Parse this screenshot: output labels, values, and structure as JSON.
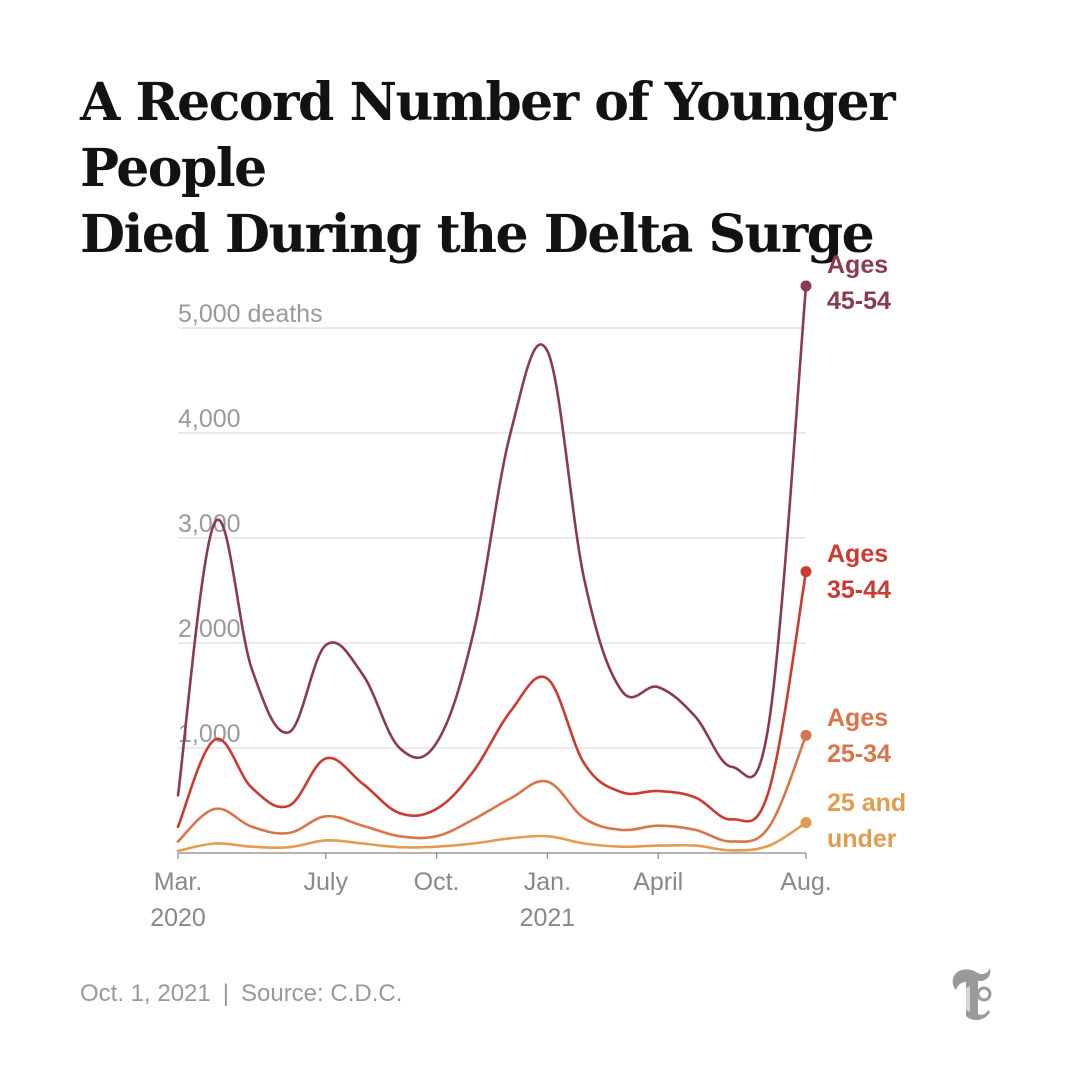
{
  "header": {
    "title_lines": [
      "A Record Number of Younger People",
      "Died During the Delta Surge"
    ]
  },
  "footer": {
    "date": "Oct. 1, 2021",
    "separator": "|",
    "source": "Source: C.D.C."
  },
  "logo": {
    "icon": "nyt-t-logo-icon"
  },
  "chart_data": {
    "type": "line",
    "title": "A Record Number of Younger People Died During the Delta Surge",
    "ylim": [
      0,
      5000
    ],
    "y_ticks": [
      {
        "value": 1000,
        "label": "1,000"
      },
      {
        "value": 2000,
        "label": "2,000"
      },
      {
        "value": 3000,
        "label": "3,000"
      },
      {
        "value": 4000,
        "label": "4,000"
      },
      {
        "value": 5000,
        "label": "5,000 deaths"
      }
    ],
    "x_ticks": [
      {
        "x": "2020-03",
        "lines": [
          "Mar.",
          "2020"
        ]
      },
      {
        "x": "2020-07",
        "lines": [
          "July"
        ]
      },
      {
        "x": "2020-10",
        "lines": [
          "Oct."
        ]
      },
      {
        "x": "2021-01",
        "lines": [
          "Jan.",
          "2021"
        ]
      },
      {
        "x": "2021-04",
        "lines": [
          "April"
        ]
      },
      {
        "x": "2021-08",
        "lines": [
          "Aug."
        ]
      }
    ],
    "grid": true,
    "x": [
      "2020-03",
      "2020-04",
      "2020-05",
      "2020-06",
      "2020-07",
      "2020-08",
      "2020-09",
      "2020-10",
      "2020-11",
      "2020-12",
      "2021-01",
      "2021-02",
      "2021-03",
      "2021-04",
      "2021-05",
      "2021-06",
      "2021-07",
      "2021-08"
    ],
    "series": [
      {
        "name": "Ages 45-54",
        "label_lines": [
          "Ages",
          "45-54"
        ],
        "color": "#8c3a4e",
        "values": [
          550,
          3150,
          1750,
          1150,
          1980,
          1700,
          1000,
          1050,
          2100,
          4000,
          4780,
          2600,
          1550,
          1580,
          1300,
          820,
          1250,
          5400
        ]
      },
      {
        "name": "Ages 35-44",
        "label_lines": [
          "Ages",
          "35-44"
        ],
        "color": "#cc3a32",
        "values": [
          250,
          1080,
          620,
          450,
          900,
          660,
          380,
          420,
          780,
          1350,
          1660,
          850,
          580,
          590,
          530,
          320,
          600,
          2680
        ]
      },
      {
        "name": "Ages 25-34",
        "label_lines": [
          "Ages",
          "25-34"
        ],
        "color": "#d9744b",
        "values": [
          110,
          420,
          250,
          190,
          350,
          260,
          160,
          160,
          320,
          520,
          680,
          330,
          220,
          260,
          220,
          110,
          250,
          1120
        ]
      },
      {
        "name": "25 and under",
        "label_lines": [
          "25 and",
          "under"
        ],
        "color": "#e39b4e",
        "values": [
          20,
          90,
          60,
          55,
          120,
          90,
          55,
          60,
          90,
          140,
          160,
          90,
          60,
          70,
          70,
          25,
          70,
          290
        ]
      }
    ]
  }
}
